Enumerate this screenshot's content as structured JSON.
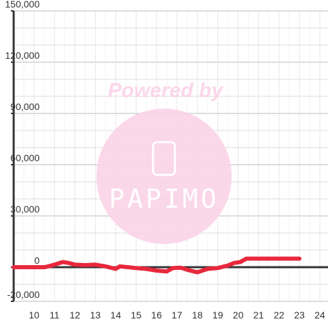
{
  "chart_data": {
    "type": "line",
    "watermark": [
      "Powered by",
      "PAPIMO"
    ],
    "x": [
      9,
      9.5,
      10,
      10.5,
      10.7,
      11,
      11.4,
      11.7,
      12,
      12.5,
      13,
      13.5,
      14,
      14.2,
      14.6,
      15,
      15.5,
      16,
      16.5,
      16.8,
      17.2,
      17.5,
      18,
      18.5,
      19,
      19.5,
      19.8,
      20.1,
      20.4,
      21,
      22,
      23
    ],
    "series": [
      {
        "color": "#e8283c",
        "values": [
          0,
          0,
          0,
          0,
          500,
          1500,
          3000,
          2500,
          1500,
          1200,
          1500,
          500,
          -1000,
          500,
          0,
          -500,
          -1000,
          -2000,
          -2500,
          -500,
          -300,
          -1500,
          -3000,
          -1000,
          -500,
          1000,
          2500,
          3000,
          5000,
          5000,
          5000,
          5000
        ]
      }
    ],
    "xlim": [
      9,
      24.4
    ],
    "ylim": [
      -20000,
      150000
    ],
    "xticks": [
      10,
      11,
      12,
      13,
      14,
      15,
      16,
      17,
      18,
      19,
      20,
      21,
      22,
      23,
      24
    ],
    "yticks": [
      {
        "value": -20000,
        "label": "-20,000"
      },
      {
        "value": 0,
        "label": "0"
      },
      {
        "value": 30000,
        "label": "30,000"
      },
      {
        "value": 60000,
        "label": "60,000"
      },
      {
        "value": 90000,
        "label": "90,000"
      },
      {
        "value": 120000,
        "label": "120,000"
      },
      {
        "value": 150000,
        "label": "150,000"
      }
    ],
    "yminorticks": [
      -10000,
      10000,
      20000,
      40000,
      50000,
      70000,
      80000,
      100000,
      110000,
      130000,
      140000
    ],
    "xminorticks": [
      9.5,
      10.5,
      11.5,
      12.5,
      13.5,
      14.5,
      15.5,
      16.5,
      17.5,
      18.5,
      19.5,
      20.5,
      21.5,
      22.5,
      23.5
    ],
    "grid": true
  }
}
